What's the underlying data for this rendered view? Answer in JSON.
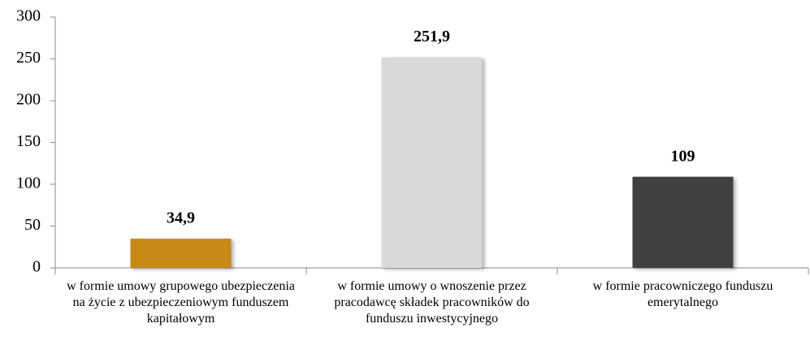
{
  "chart_data": {
    "type": "bar",
    "categories": [
      "w formie umowy grupowego ubezpieczenia na życie z ubezpieczeniowym funduszem kapitałowym",
      "w formie umowy o wnoszenie przez pracodawcę składek pracowników do funduszu inwestycyjnego",
      "w formie pracowniczego funduszu emerytalnego"
    ],
    "values": [
      34.9,
      251.9,
      109
    ],
    "value_labels": [
      "34,9",
      "251,9",
      "109"
    ],
    "colors": [
      "#c88a12",
      "#d9d9d9",
      "#404040"
    ],
    "ylim": [
      0,
      300
    ],
    "yticks": [
      0,
      50,
      100,
      150,
      200,
      250,
      300
    ],
    "grid": false
  }
}
